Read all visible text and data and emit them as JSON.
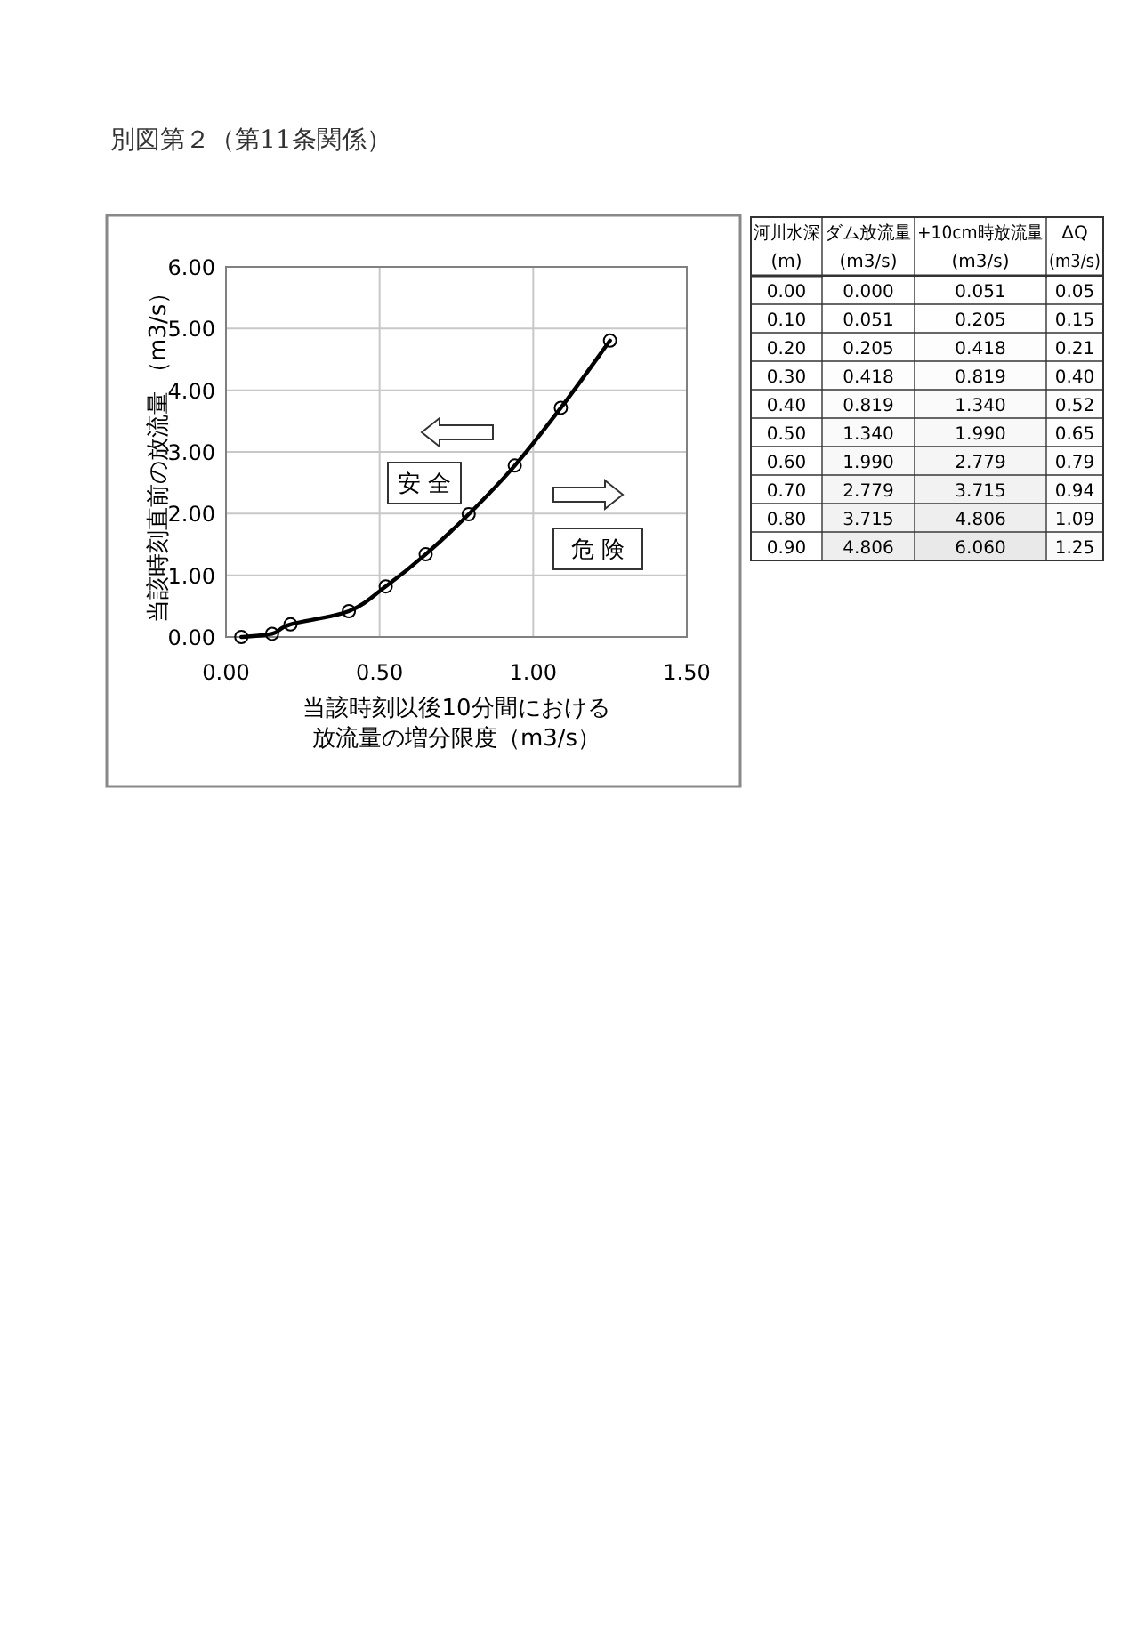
{
  "chart_data": [
    {
      "type": "line",
      "title": "別図第２（第11条関係）",
      "xlabel": "当該時刻以後10分間における放流量の増分限度（m3/s）",
      "ylabel": "当該時刻直前の放流量 （m3/s）",
      "x": [
        0.05,
        0.15,
        0.21,
        0.4,
        0.52,
        0.65,
        0.79,
        0.94,
        1.09,
        1.25
      ],
      "series": [
        {
          "color": "#000000",
          "values": [
            0.0,
            0.051,
            0.205,
            0.418,
            0.819,
            1.34,
            1.99,
            2.779,
            3.715,
            4.806
          ]
        }
      ],
      "xlim": [
        0,
        1.5
      ],
      "ylim": [
        0,
        6
      ],
      "xticks": [
        {
          "value": 0,
          "label": "0.00"
        },
        {
          "value": 0.5,
          "label": "0.50"
        },
        {
          "value": 1,
          "label": "1.00"
        },
        {
          "value": 1.5,
          "label": "1.50"
        }
      ],
      "yticks": [
        {
          "value": 0,
          "label": "0.00"
        },
        {
          "value": 1,
          "label": "1.00"
        },
        {
          "value": 2,
          "label": "2.00"
        },
        {
          "value": 3,
          "label": "3.00"
        },
        {
          "value": 4,
          "label": "4.00"
        },
        {
          "value": 5,
          "label": "5.00"
        },
        {
          "value": 6,
          "label": "6.00"
        }
      ],
      "grid": true,
      "marker": "circle",
      "line_style": "solid",
      "annotations": [
        "安 全",
        "危 険"
      ]
    },
    {
      "type": "heatmap",
      "ylabel": "河川水深(m)",
      "categories": [
        "ダム放流量(m3/s)",
        "+10cm時放流量(m3/s)",
        "ΔQ(m3/s)"
      ],
      "y_categories": [
        "0.00",
        "0.10",
        "0.20",
        "0.30",
        "0.40",
        "0.50",
        "0.60",
        "0.70",
        "0.80",
        "0.90"
      ],
      "cells": [
        [
          0.0,
          0.051,
          0.05
        ],
        [
          0.051,
          0.205,
          0.15
        ],
        [
          0.205,
          0.418,
          0.21
        ],
        [
          0.418,
          0.819,
          0.4
        ],
        [
          0.819,
          1.34,
          0.52
        ],
        [
          1.34,
          1.99,
          0.65
        ],
        [
          1.99,
          2.779,
          0.79
        ],
        [
          2.779,
          3.715,
          0.94
        ],
        [
          3.715,
          4.806,
          1.09
        ],
        [
          4.806,
          6.06,
          1.25
        ]
      ],
      "cell_labels": [
        [
          "0.000",
          "0.051",
          "0.05"
        ],
        [
          "0.051",
          "0.205",
          "0.15"
        ],
        [
          "0.205",
          "0.418",
          "0.21"
        ],
        [
          "0.418",
          "0.819",
          "0.40"
        ],
        [
          "0.819",
          "1.340",
          "0.52"
        ],
        [
          "1.340",
          "1.990",
          "0.65"
        ],
        [
          "1.990",
          "2.779",
          "0.79"
        ],
        [
          "2.779",
          "3.715",
          "0.94"
        ],
        [
          "3.715",
          "4.806",
          "1.09"
        ],
        [
          "4.806",
          "6.060",
          "1.25"
        ]
      ]
    }
  ]
}
